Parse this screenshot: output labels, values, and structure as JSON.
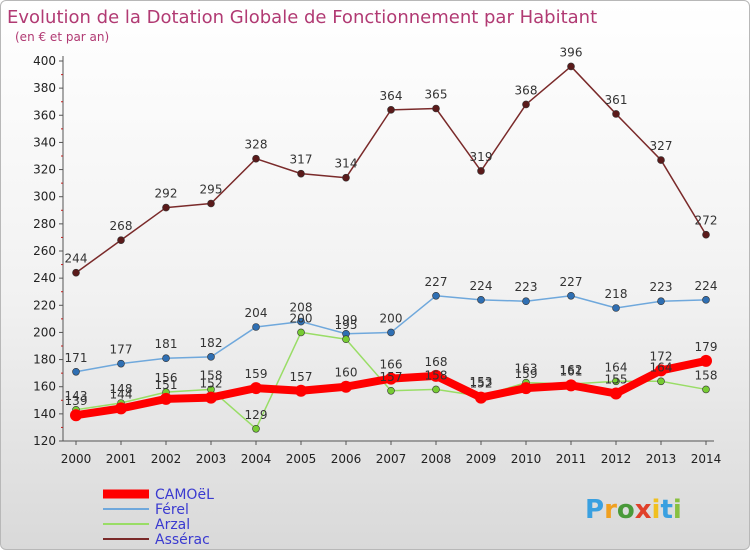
{
  "chart_data": {
    "type": "line",
    "title": "Evolution de la Dotation Globale de Fonctionnement par Habitant",
    "subtitle": "(en € et par an)",
    "x": [
      "2000",
      "2001",
      "2002",
      "2003",
      "2004",
      "2005",
      "2006",
      "2007",
      "2008",
      "2009",
      "2010",
      "2011",
      "2012",
      "2013",
      "2014"
    ],
    "ylim": [
      120,
      400
    ],
    "yticks": [
      120,
      140,
      160,
      180,
      200,
      220,
      240,
      260,
      280,
      300,
      320,
      340,
      360,
      380,
      400
    ],
    "grid": false,
    "legend_position": "bottom-left",
    "series": [
      {
        "name": "CAMOëL",
        "color": "#ff0000",
        "marker": "#ff0000",
        "values": [
          139,
          144,
          151,
          152,
          159,
          157,
          160,
          166,
          168,
          152,
          159,
          161,
          155,
          172,
          179
        ]
      },
      {
        "name": "Férel",
        "color": "#6fa8dc",
        "marker": "#2f6fb3",
        "values": [
          171,
          177,
          181,
          182,
          204,
          208,
          199,
          200,
          227,
          224,
          223,
          227,
          218,
          223,
          224
        ]
      },
      {
        "name": "Arzal",
        "color": "#99dd66",
        "marker": "#77cc33",
        "values": [
          143,
          148,
          156,
          158,
          129,
          200,
          195,
          157,
          158,
          153,
          163,
          162,
          164,
          164,
          158
        ]
      },
      {
        "name": "Assérac",
        "color": "#7a2a2a",
        "marker": "#5a1a1a",
        "values": [
          244,
          268,
          292,
          295,
          328,
          317,
          314,
          364,
          365,
          319,
          368,
          396,
          361,
          327,
          272
        ]
      }
    ]
  },
  "brand": {
    "letters": [
      "P",
      "r",
      "o",
      "x",
      "i",
      "t",
      "i"
    ],
    "colors": [
      "#3aa0e0",
      "#f0a020",
      "#4a9a3a",
      "#e0402a",
      "#f0c020",
      "#3aa0e0",
      "#88c040"
    ]
  }
}
